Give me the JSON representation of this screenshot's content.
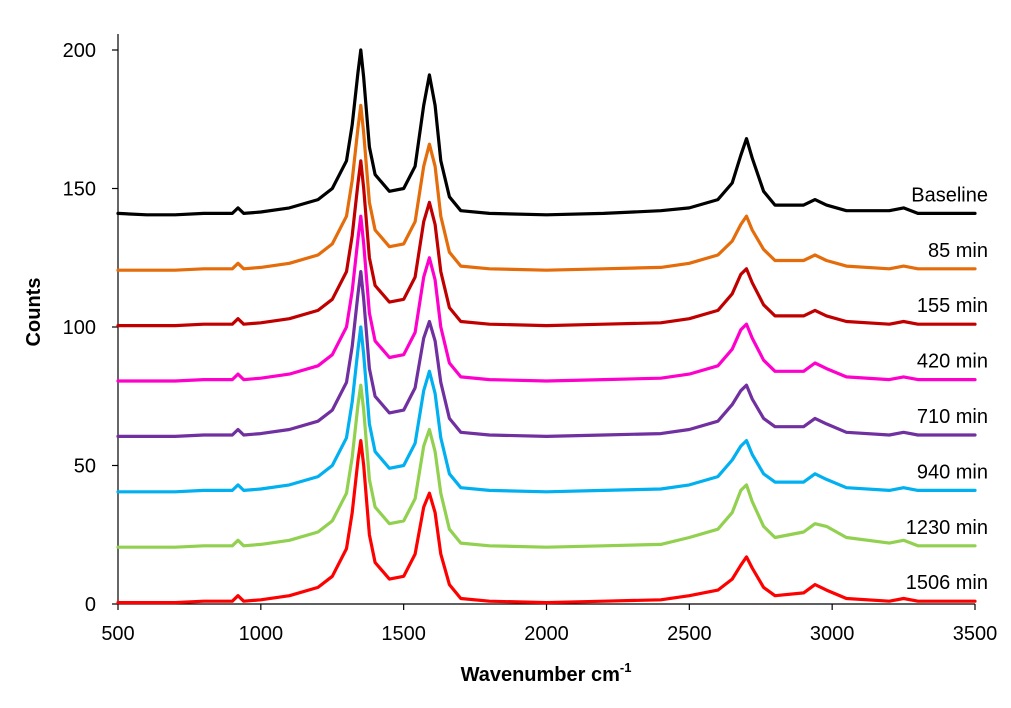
{
  "chart_data": {
    "type": "line",
    "title": "",
    "xlabel": "Wavenumber cm",
    "xlabel_superscript": "-1",
    "ylabel": "Counts",
    "xlim": [
      500,
      3500
    ],
    "ylim": [
      0,
      200
    ],
    "x_ticks": [
      500,
      1000,
      1500,
      2000,
      2500,
      3000,
      3500
    ],
    "y_ticks": [
      0,
      50,
      100,
      150,
      200
    ],
    "grid": false,
    "legend": "inline-right",
    "x": [
      500,
      600,
      700,
      800,
      900,
      920,
      940,
      1000,
      1100,
      1200,
      1250,
      1300,
      1320,
      1340,
      1350,
      1360,
      1380,
      1400,
      1450,
      1500,
      1540,
      1570,
      1590,
      1610,
      1630,
      1660,
      1700,
      1800,
      2000,
      2200,
      2400,
      2500,
      2600,
      2650,
      2680,
      2700,
      2720,
      2760,
      2800,
      2900,
      2940,
      2980,
      3050,
      3200,
      3250,
      3300,
      3500
    ],
    "series": [
      {
        "name": "Baseline",
        "color": "#000000",
        "values": [
          141,
          140.5,
          140.5,
          141,
          141,
          143,
          141,
          141.5,
          143,
          146,
          150,
          160,
          173,
          192,
          200,
          190,
          165,
          155,
          149,
          150,
          158,
          180,
          191,
          180,
          160,
          147,
          142,
          141,
          140.5,
          141,
          142,
          143,
          146,
          152,
          162,
          168,
          161,
          149,
          144,
          144,
          146,
          144,
          142,
          142,
          143,
          141,
          141
        ]
      },
      {
        "name": "85 min",
        "color": "#e46c0a",
        "values": [
          120.5,
          120.5,
          120.5,
          121,
          121,
          123,
          121,
          121.5,
          123,
          126,
          130,
          140,
          153,
          172,
          180,
          170,
          145,
          135,
          129,
          130,
          138,
          158,
          166,
          158,
          140,
          127,
          122,
          121,
          120.5,
          121,
          121.5,
          123,
          126,
          131,
          137,
          140,
          135,
          128,
          124,
          124,
          126,
          124,
          122,
          121,
          122,
          121,
          121
        ]
      },
      {
        "name": "155 min",
        "color": "#c00000",
        "values": [
          100.5,
          100.5,
          100.5,
          101,
          101,
          103,
          101,
          101.5,
          103,
          106,
          110,
          120,
          133,
          152,
          160,
          150,
          125,
          115,
          109,
          110,
          118,
          138,
          145,
          137,
          120,
          107,
          102,
          101,
          100.5,
          101,
          101.5,
          103,
          106,
          112,
          119,
          121,
          116,
          108,
          104,
          104,
          106,
          104,
          102,
          101,
          102,
          101,
          101
        ]
      },
      {
        "name": "420 min",
        "color": "#ff00cc",
        "values": [
          80.5,
          80.5,
          80.5,
          81,
          81,
          83,
          81,
          81.5,
          83,
          86,
          90,
          100,
          113,
          132,
          140,
          130,
          105,
          95,
          89,
          90,
          98,
          118,
          125,
          117,
          100,
          87,
          82,
          81,
          80.5,
          81,
          81.5,
          83,
          86,
          92,
          99,
          101,
          96,
          88,
          84,
          84,
          87,
          85,
          82,
          81,
          82,
          81,
          81
        ]
      },
      {
        "name": "710 min",
        "color": "#7030a0",
        "values": [
          60.5,
          60.5,
          60.5,
          61,
          61,
          63,
          61,
          61.5,
          63,
          66,
          70,
          80,
          93,
          112,
          120,
          110,
          85,
          75,
          69,
          70,
          78,
          96,
          102,
          95,
          80,
          67,
          62,
          61,
          60.5,
          61,
          61.5,
          63,
          66,
          72,
          77,
          79,
          74,
          67,
          64,
          64,
          67,
          65,
          62,
          61,
          62,
          61,
          61
        ]
      },
      {
        "name": "940 min",
        "color": "#00b0f0",
        "values": [
          40.5,
          40.5,
          40.5,
          41,
          41,
          43,
          41,
          41.5,
          43,
          46,
          50,
          60,
          73,
          92,
          100,
          90,
          65,
          55,
          49,
          50,
          58,
          77,
          84,
          76,
          60,
          47,
          42,
          41,
          40.5,
          41,
          41.5,
          43,
          46,
          52,
          57,
          59,
          54,
          47,
          44,
          44,
          47,
          45,
          42,
          41,
          42,
          41,
          41
        ]
      },
      {
        "name": "1230 min",
        "color": "#92d050",
        "values": [
          20.5,
          20.5,
          20.5,
          21,
          21,
          23,
          21,
          21.5,
          23,
          26,
          30,
          40,
          53,
          72,
          79,
          70,
          45,
          35,
          29,
          30,
          38,
          57,
          63,
          55,
          40,
          27,
          22,
          21,
          20.5,
          21,
          21.5,
          24,
          27,
          33,
          41,
          43,
          37,
          28,
          24,
          26,
          29,
          28,
          24,
          22,
          23,
          21,
          21
        ]
      },
      {
        "name": "1506 min",
        "color": "#ff0000",
        "values": [
          0.5,
          0.5,
          0.5,
          1,
          1,
          3,
          1,
          1.5,
          3,
          6,
          10,
          20,
          33,
          52,
          59,
          50,
          25,
          15,
          9,
          10,
          18,
          35,
          40,
          33,
          18,
          7,
          2,
          1,
          0.5,
          1,
          1.5,
          3,
          5,
          9,
          14,
          17,
          13,
          6,
          3,
          4,
          7,
          5,
          2,
          1,
          2,
          1,
          1
        ]
      }
    ],
    "series_labels": [
      "Baseline",
      "85 min",
      "155 min",
      "420 min",
      "710 min",
      "940 min",
      "1230 min",
      "1506 min"
    ]
  }
}
